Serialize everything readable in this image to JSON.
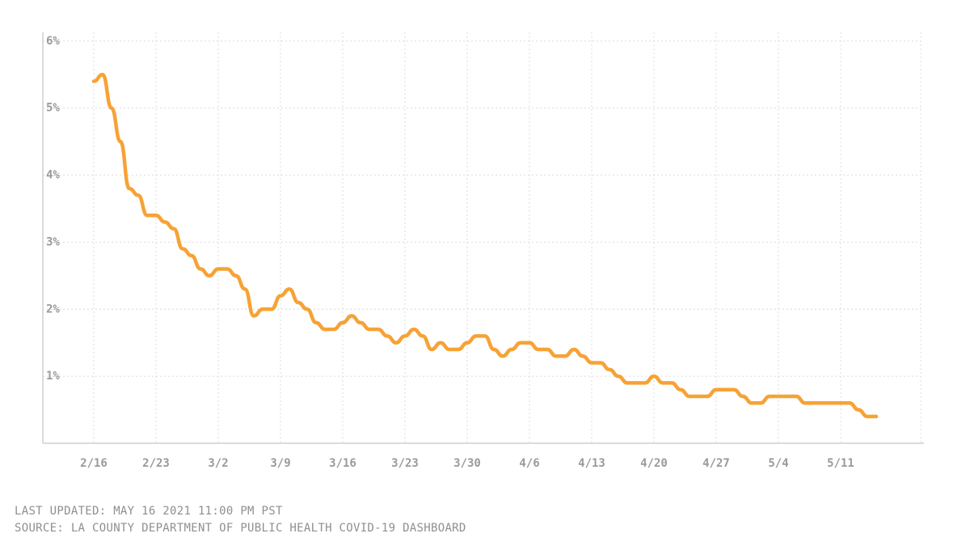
{
  "chart_data": {
    "type": "line",
    "categories": [
      "2/16",
      null,
      null,
      null,
      null,
      null,
      null,
      "2/23",
      null,
      null,
      null,
      null,
      null,
      null,
      "3/2",
      null,
      null,
      null,
      null,
      null,
      null,
      "3/9",
      null,
      null,
      null,
      null,
      null,
      null,
      "3/16",
      null,
      null,
      null,
      null,
      null,
      null,
      "3/23",
      null,
      null,
      null,
      null,
      null,
      null,
      "3/30",
      null,
      null,
      null,
      null,
      null,
      null,
      "4/6",
      null,
      null,
      null,
      null,
      null,
      null,
      "4/13",
      null,
      null,
      null,
      null,
      null,
      null,
      "4/20",
      null,
      null,
      null,
      null,
      null,
      null,
      "4/27",
      null,
      null,
      null,
      null,
      null,
      null,
      "5/4",
      null,
      null,
      null,
      null,
      null,
      null,
      "5/11",
      null,
      null,
      null,
      null
    ],
    "series": [
      {
        "color": "#f7a235",
        "values": [
          5.4,
          5.5,
          5.0,
          4.5,
          3.8,
          3.7,
          3.4,
          3.4,
          3.3,
          3.2,
          2.9,
          2.8,
          2.6,
          2.5,
          2.6,
          2.6,
          2.5,
          2.3,
          1.9,
          2.0,
          2.0,
          2.2,
          2.3,
          2.1,
          2.0,
          1.8,
          1.7,
          1.7,
          1.8,
          1.9,
          1.8,
          1.7,
          1.7,
          1.6,
          1.5,
          1.6,
          1.7,
          1.6,
          1.4,
          1.5,
          1.4,
          1.4,
          1.5,
          1.6,
          1.6,
          1.4,
          1.3,
          1.4,
          1.5,
          1.5,
          1.4,
          1.4,
          1.3,
          1.3,
          1.4,
          1.3,
          1.2,
          1.2,
          1.1,
          1.0,
          0.9,
          0.9,
          0.9,
          1.0,
          0.9,
          0.9,
          0.8,
          0.7,
          0.7,
          0.7,
          0.8,
          0.8,
          0.8,
          0.7,
          0.6,
          0.6,
          0.7,
          0.7,
          0.7,
          0.7,
          0.6,
          0.6,
          0.6,
          0.6,
          0.6,
          0.6,
          0.5,
          0.4,
          0.4
        ]
      }
    ],
    "ylim": [
      0,
      6.13
    ],
    "yticks": [
      {
        "value": 1,
        "label": "1%"
      },
      {
        "value": 2,
        "label": "2%"
      },
      {
        "value": 3,
        "label": "3%"
      },
      {
        "value": 4,
        "label": "4%"
      },
      {
        "value": 5,
        "label": "5%"
      },
      {
        "value": 6,
        "label": "6%"
      }
    ],
    "grid": true
  },
  "footer": {
    "updated": "LAST UPDATED: MAY 16 2021 11:00 PM PST",
    "source": "SOURCE: LA COUNTY DEPARTMENT OF PUBLIC HEALTH COVID-19 DASHBOARD"
  }
}
